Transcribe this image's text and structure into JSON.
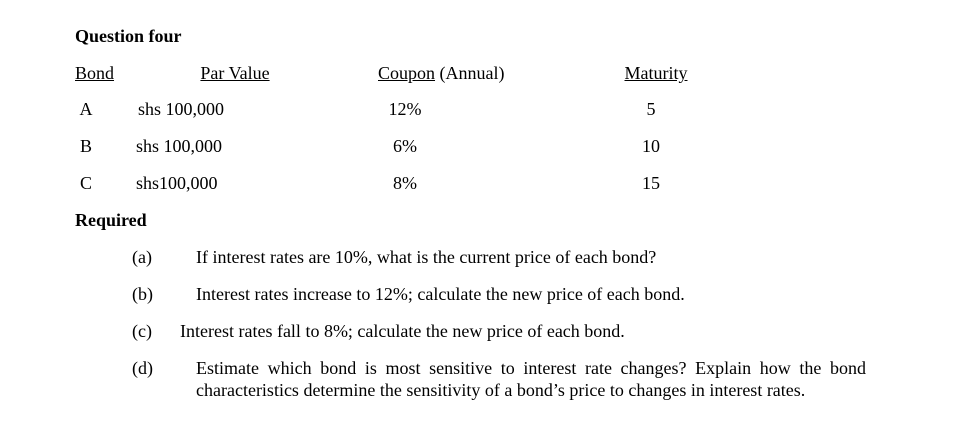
{
  "title": "Question four",
  "table": {
    "headers": [
      "Bond",
      "Par Value",
      {
        "underlined": "Coupon",
        "rest": "(Annual)"
      },
      "Maturity"
    ],
    "rows": [
      [
        "A",
        "shs 100,000",
        "12%",
        "5"
      ],
      [
        "B",
        "shs 100,000",
        "6%",
        "10"
      ],
      [
        "C",
        "shs100,000",
        "8%",
        "15"
      ]
    ]
  },
  "required": {
    "heading": "Required",
    "items": [
      {
        "label": "(a)",
        "text": "If interest rates are 10%, what is the current price of each bond?"
      },
      {
        "label": "(b)",
        "text": "Interest rates increase to 12%; calculate the new price of each bond."
      },
      {
        "label": "(c)",
        "text": "Interest rates fall to 8%; calculate the new price of each bond."
      },
      {
        "label": "(d)",
        "text": "Estimate which bond is most sensitive to interest rate changes? Explain how the bond characteristics determine the sensitivity of a bond’s price to changes in interest rates."
      }
    ]
  }
}
